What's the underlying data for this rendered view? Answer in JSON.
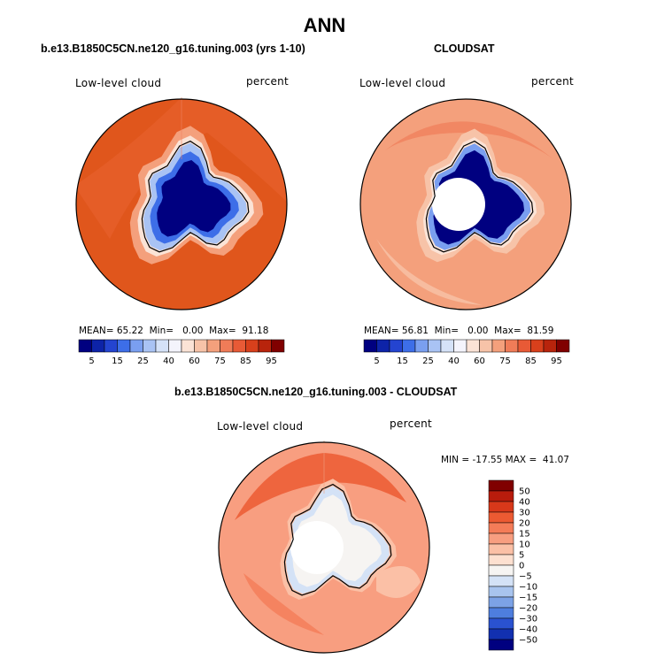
{
  "title": "ANN",
  "panels": [
    {
      "id": "model",
      "subtitle": "b.e13.B1850C5CN.ne120_g16.tuning.003 (yrs 1-10)",
      "left_label": "Low-level cloud",
      "right_label": "percent",
      "stats": {
        "mean": "65.22",
        "min": "0.00",
        "max": "91.18"
      },
      "pole_mask": false
    },
    {
      "id": "obs",
      "subtitle": "CLOUDSAT",
      "left_label": "Low-level cloud",
      "right_label": "percent",
      "stats": {
        "mean": "56.81",
        "min": "0.00",
        "max": "81.59"
      },
      "pole_mask": true
    }
  ],
  "stats_labels": {
    "mean": "MEAN=",
    "min": "Min=",
    "max": "Max="
  },
  "abs_colorbar": {
    "labels": [
      "5",
      "15",
      "25",
      "40",
      "60",
      "75",
      "85",
      "95"
    ],
    "colors": [
      "#000080",
      "#0d23a8",
      "#2444d0",
      "#3d6ee8",
      "#7a9ff0",
      "#a9c3f4",
      "#d5e2f8",
      "#f4f4fc",
      "#fbe3d6",
      "#f7c3a8",
      "#f4a07c",
      "#f07c58",
      "#e85a36",
      "#d8401c",
      "#b8240c",
      "#800000"
    ]
  },
  "diff_panel": {
    "subtitle": "b.e13.B1850C5CN.ne120_g16.tuning.003 - CLOUDSAT",
    "left_label": "Low-level cloud",
    "right_label": "percent",
    "minmax": "MIN = -17.55 MAX =  41.07"
  },
  "diff_colorbar": {
    "labels": [
      "50",
      "40",
      "30",
      "20",
      "15",
      "10",
      "5",
      "0",
      "−5",
      "−10",
      "−15",
      "−20",
      "−30",
      "−40",
      "−50"
    ],
    "colors": [
      "#800000",
      "#b81c0c",
      "#d8381a",
      "#ec5a32",
      "#f47c58",
      "#f89e80",
      "#fbc0a6",
      "#fde0d0",
      "#f6f4f2",
      "#d4e2f6",
      "#a8c4ee",
      "#7ca2e6",
      "#4e7ede",
      "#2a52d0",
      "#1230b0",
      "#000080"
    ]
  }
}
